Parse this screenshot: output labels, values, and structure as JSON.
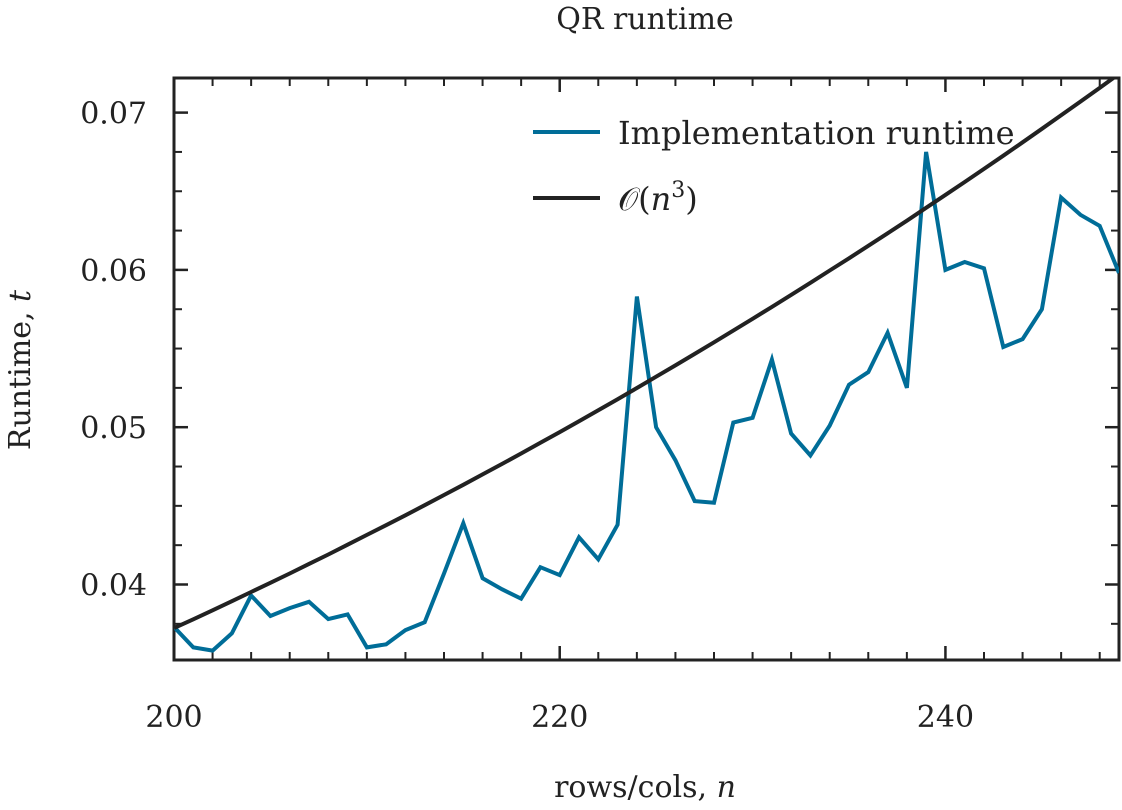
{
  "chart_data": {
    "type": "line",
    "title": "QR runtime",
    "xlabel": "rows/cols, n",
    "xlabel_plain": "rows/cols, ",
    "xlabel_var": "n",
    "ylabel": "Runtime, t",
    "ylabel_plain": "Runtime, ",
    "ylabel_var": "t",
    "xlim": [
      200,
      249
    ],
    "ylim": [
      0.0352,
      0.0722
    ],
    "x_ticks": [
      200,
      220,
      240
    ],
    "x_tick_labels": [
      "200",
      "220",
      "240"
    ],
    "x_minor_ticks": [
      202,
      204,
      206,
      208,
      210,
      212,
      214,
      216,
      218,
      222,
      224,
      226,
      228,
      230,
      232,
      234,
      236,
      238,
      242,
      244,
      246,
      248
    ],
    "y_ticks": [
      0.04,
      0.05,
      0.06,
      0.07
    ],
    "y_tick_labels": [
      "0.04",
      "0.05",
      "0.06",
      "0.07"
    ],
    "y_minor_ticks": [
      0.0375,
      0.0425,
      0.045,
      0.0475,
      0.0525,
      0.055,
      0.0575,
      0.0625,
      0.065,
      0.0675,
      0.0725
    ],
    "grid": false,
    "legend_position": "top-right",
    "series": [
      {
        "name": "Implementation runtime",
        "color": "#006d98",
        "x": [
          200,
          201,
          202,
          203,
          204,
          205,
          206,
          207,
          208,
          209,
          210,
          211,
          212,
          213,
          214,
          215,
          216,
          217,
          218,
          219,
          220,
          221,
          222,
          223,
          224,
          225,
          226,
          227,
          228,
          229,
          230,
          231,
          232,
          233,
          234,
          235,
          236,
          237,
          238,
          239,
          240,
          241,
          242,
          243,
          244,
          245,
          246,
          247,
          248,
          249
        ],
        "y": [
          0.0373,
          0.036,
          0.0358,
          0.0369,
          0.0393,
          0.038,
          0.0385,
          0.0389,
          0.0378,
          0.0381,
          0.036,
          0.0362,
          0.0371,
          0.0376,
          0.0407,
          0.0439,
          0.0404,
          0.0397,
          0.0391,
          0.0411,
          0.0406,
          0.043,
          0.0416,
          0.0438,
          0.0583,
          0.05,
          0.0479,
          0.0453,
          0.0452,
          0.0503,
          0.0506,
          0.0543,
          0.0496,
          0.0482,
          0.0501,
          0.0527,
          0.0535,
          0.056,
          0.0525,
          0.0675,
          0.06,
          0.0605,
          0.0601,
          0.0551,
          0.0556,
          0.0575,
          0.0646,
          0.0635,
          0.0628,
          0.0598
        ]
      },
      {
        "name": "O(n^3)",
        "legend_label_prefix": "𝒪(",
        "legend_label_var": "n",
        "legend_label_sup": "3",
        "legend_label_suffix": ")",
        "color": "#222222",
        "x": [
          200,
          201,
          202,
          203,
          204,
          205,
          206,
          207,
          208,
          209,
          210,
          211,
          212,
          213,
          214,
          215,
          216,
          217,
          218,
          219,
          220,
          221,
          222,
          223,
          224,
          225,
          226,
          227,
          228,
          229,
          230,
          231,
          232,
          233,
          234,
          235,
          236,
          237,
          238,
          239,
          240,
          241,
          242,
          243,
          244,
          245,
          246,
          247,
          248,
          249
        ],
        "y": [
          0.03723,
          0.03779,
          0.03836,
          0.03894,
          0.03952,
          0.04011,
          0.0407,
          0.04131,
          0.04191,
          0.04253,
          0.04315,
          0.04377,
          0.0444,
          0.04504,
          0.04569,
          0.04634,
          0.047,
          0.04766,
          0.04833,
          0.04901,
          0.04969,
          0.05038,
          0.05108,
          0.05178,
          0.05249,
          0.05321,
          0.05393,
          0.05466,
          0.0554,
          0.05614,
          0.05689,
          0.05765,
          0.05841,
          0.05918,
          0.05996,
          0.06074,
          0.06153,
          0.06233,
          0.06313,
          0.06395,
          0.06477,
          0.06559,
          0.06642,
          0.06726,
          0.06811,
          0.06897,
          0.06983,
          0.0707,
          0.07157,
          0.07246
        ]
      }
    ]
  }
}
